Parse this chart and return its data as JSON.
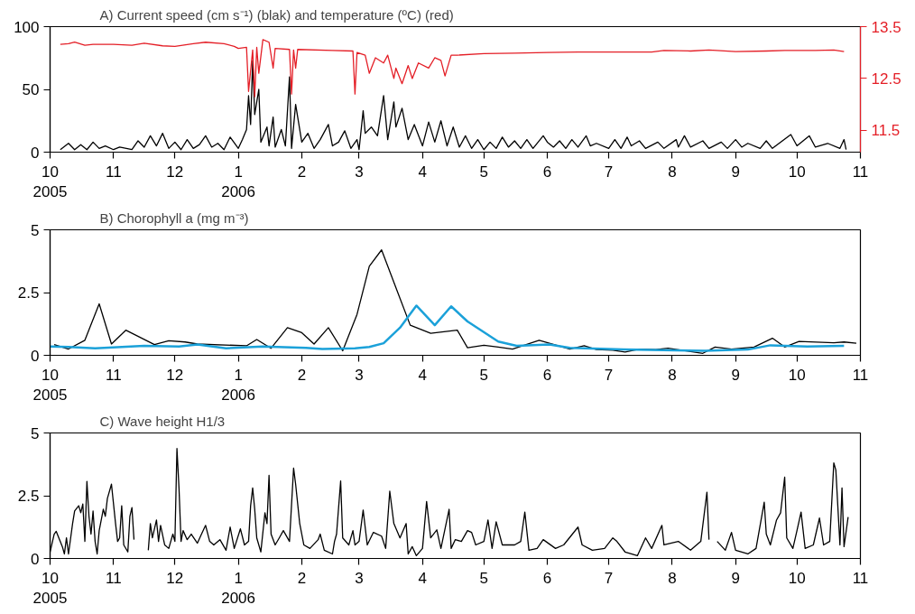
{
  "chart_data": [
    {
      "type": "line",
      "title": "A) Current speed (cm s⁻¹) (blak) and temperature (ºC) (red)",
      "xlim": [
        "2005-10-01",
        "2006-11-01"
      ],
      "xticks": [
        {
          "value": "2005-10-01",
          "label": "10\n2005"
        },
        {
          "value": "2005-11-01",
          "label": "11"
        },
        {
          "value": "2005-12-01",
          "label": "12"
        },
        {
          "value": "2006-01-01",
          "label": "1\n2006"
        },
        {
          "value": "2006-02-01",
          "label": "2"
        },
        {
          "value": "2006-03-01",
          "label": "3"
        },
        {
          "value": "2006-04-01",
          "label": "4"
        },
        {
          "value": "2006-05-01",
          "label": "5"
        },
        {
          "value": "2006-06-01",
          "label": "6"
        },
        {
          "value": "2006-07-01",
          "label": "7"
        },
        {
          "value": "2006-08-01",
          "label": "8"
        },
        {
          "value": "2006-09-01",
          "label": "9"
        },
        {
          "value": "2006-10-01",
          "label": "10"
        },
        {
          "value": "2006-11-01",
          "label": "11"
        }
      ],
      "ylim": [
        0,
        100
      ],
      "yticks": [
        0,
        50,
        100
      ],
      "y2lim": [
        11.08,
        13.5
      ],
      "y2ticks": [
        11.5,
        12.5,
        13.5
      ],
      "grid": false,
      "series": [
        {
          "color": "#000000",
          "x": [
            "2005-10-06",
            "2005-10-10",
            "2005-10-13",
            "2005-10-16",
            "2005-10-19",
            "2005-10-22",
            "2005-10-25",
            "2005-10-28",
            "2005-11-01",
            "2005-11-04",
            "2005-11-10",
            "2005-11-13",
            "2005-11-16",
            "2005-11-19",
            "2005-11-22",
            "2005-11-25",
            "2005-11-28",
            "2005-12-01",
            "2005-12-04",
            "2005-12-07",
            "2005-12-10",
            "2005-12-13",
            "2005-12-16",
            "2005-12-19",
            "2005-12-22",
            "2005-12-25",
            "2005-12-28",
            "2006-01-01",
            "2006-01-03",
            "2006-01-05",
            "2006-01-06",
            "2006-01-07",
            "2006-01-08",
            "2006-01-09",
            "2006-01-11",
            "2006-01-12",
            "2006-01-15",
            "2006-01-16",
            "2006-01-18",
            "2006-01-19",
            "2006-01-22",
            "2006-01-24",
            "2006-01-26",
            "2006-01-27",
            "2006-01-29",
            "2006-02-01",
            "2006-02-04",
            "2006-02-07",
            "2006-02-10",
            "2006-02-14",
            "2006-02-16",
            "2006-02-19",
            "2006-02-22",
            "2006-02-25",
            "2006-02-28",
            "2006-03-01",
            "2006-03-03",
            "2006-03-04",
            "2006-03-07",
            "2006-03-10",
            "2006-03-13",
            "2006-03-15",
            "2006-03-18",
            "2006-03-19",
            "2006-03-22",
            "2006-03-25",
            "2006-03-28",
            "2006-04-01",
            "2006-04-04",
            "2006-04-07",
            "2006-04-10",
            "2006-04-13",
            "2006-04-16",
            "2006-04-19",
            "2006-04-22",
            "2006-04-25",
            "2006-04-28",
            "2006-05-01",
            "2006-05-04",
            "2006-05-07",
            "2006-05-10",
            "2006-05-13",
            "2006-05-16",
            "2006-05-19",
            "2006-05-22",
            "2006-05-25",
            "2006-05-30",
            "2006-06-01",
            "2006-06-04",
            "2006-06-07",
            "2006-06-10",
            "2006-06-13",
            "2006-06-16",
            "2006-06-20",
            "2006-06-22",
            "2006-06-25",
            "2006-07-01",
            "2006-07-04",
            "2006-07-07",
            "2006-07-10",
            "2006-07-12",
            "2006-07-16",
            "2006-07-19",
            "2006-07-25",
            "2006-07-28",
            "2006-08-03",
            "2006-08-04",
            "2006-08-07",
            "2006-08-10",
            "2006-08-16",
            "2006-08-19",
            "2006-08-25",
            "2006-08-28",
            "2006-09-01",
            "2006-09-04",
            "2006-09-07",
            "2006-09-13",
            "2006-09-16",
            "2006-09-19",
            "2006-09-28",
            "2006-10-01",
            "2006-10-07",
            "2006-10-10",
            "2006-10-16",
            "2006-10-22",
            "2006-10-24",
            "2006-10-25"
          ],
          "values": [
            2,
            7,
            2,
            6,
            2,
            8,
            3,
            5,
            2,
            4,
            2,
            9,
            4,
            13,
            5,
            15,
            3,
            8,
            2,
            10,
            3,
            6,
            13,
            4,
            7,
            2,
            12,
            3,
            10,
            18,
            45,
            22,
            73,
            30,
            50,
            8,
            20,
            5,
            28,
            4,
            18,
            5,
            60,
            3,
            38,
            8,
            15,
            3,
            10,
            22,
            5,
            8,
            17,
            3,
            10,
            2,
            33,
            15,
            20,
            13,
            45,
            10,
            40,
            20,
            35,
            10,
            22,
            5,
            24,
            8,
            25,
            5,
            20,
            4,
            13,
            3,
            10,
            2,
            8,
            3,
            12,
            4,
            9,
            3,
            10,
            3,
            13,
            8,
            4,
            9,
            3,
            10,
            4,
            13,
            5,
            7,
            3,
            10,
            3,
            12,
            5,
            9,
            3,
            8,
            3,
            10,
            4,
            13,
            4,
            9,
            3,
            8,
            3,
            10,
            4,
            7,
            3,
            9,
            3,
            14,
            5,
            13,
            4,
            7,
            3,
            10,
            2
          ]
        },
        {
          "color": "#e41e26",
          "axis": "y2",
          "x": [
            "2005-10-06",
            "2005-10-10",
            "2005-10-13",
            "2005-10-18",
            "2005-10-22",
            "2005-11-01",
            "2005-11-10",
            "2005-11-16",
            "2005-11-25",
            "2005-12-01",
            "2005-12-10",
            "2005-12-16",
            "2005-12-25",
            "2005-12-30",
            "2006-01-01",
            "2006-01-05",
            "2006-01-06",
            "2006-01-08",
            "2006-01-09",
            "2006-01-10",
            "2006-01-11",
            "2006-01-13",
            "2006-01-16",
            "2006-01-18",
            "2006-01-19",
            "2006-01-26",
            "2006-01-27",
            "2006-01-28",
            "2006-01-29",
            "2006-01-30",
            "2006-02-16",
            "2006-02-26",
            "2006-02-27",
            "2006-02-28",
            "2006-03-04",
            "2006-03-06",
            "2006-03-09",
            "2006-03-13",
            "2006-03-15",
            "2006-03-18",
            "2006-03-19",
            "2006-03-22",
            "2006-03-25",
            "2006-03-27",
            "2006-03-30",
            "2006-04-04",
            "2006-04-07",
            "2006-04-10",
            "2006-04-12",
            "2006-04-15",
            "2006-04-18",
            "2006-05-01",
            "2006-05-16",
            "2006-06-01",
            "2006-06-16",
            "2006-07-01",
            "2006-07-22",
            "2006-07-28",
            "2006-08-10",
            "2006-08-19",
            "2006-09-01",
            "2006-09-16",
            "2006-09-25",
            "2006-10-10",
            "2006-10-19",
            "2006-10-24"
          ],
          "values": [
            13.16,
            13.17,
            13.2,
            13.14,
            13.16,
            13.16,
            13.14,
            13.18,
            13.13,
            13.12,
            13.17,
            13.2,
            13.17,
            13.12,
            13.08,
            13.1,
            12.25,
            13.05,
            12.15,
            13.1,
            12.6,
            13.25,
            13.2,
            12.7,
            13.08,
            13.06,
            12.2,
            13.05,
            12.7,
            13.06,
            13.04,
            13.03,
            12.2,
            13.0,
            12.95,
            12.6,
            12.9,
            12.8,
            12.95,
            12.5,
            12.7,
            12.4,
            12.75,
            12.5,
            12.8,
            12.7,
            12.9,
            12.85,
            12.55,
            12.95,
            12.95,
            12.98,
            12.99,
            13.0,
            13.01,
            13.01,
            13.01,
            13.04,
            13.03,
            13.05,
            13.02,
            13.03,
            13.04,
            13.04,
            13.05,
            13.02
          ]
        }
      ]
    },
    {
      "type": "line",
      "title": "B) Chorophyll a (mg m⁻³)",
      "xlim": [
        "2005-10-01",
        "2006-11-01"
      ],
      "xticks": [
        {
          "value": "2005-10-01",
          "label": "10\n2005"
        },
        {
          "value": "2005-11-01",
          "label": "11"
        },
        {
          "value": "2005-12-01",
          "label": "12"
        },
        {
          "value": "2006-01-01",
          "label": "1\n2006"
        },
        {
          "value": "2006-02-01",
          "label": "2"
        },
        {
          "value": "2006-03-01",
          "label": "3"
        },
        {
          "value": "2006-04-01",
          "label": "4"
        },
        {
          "value": "2006-05-01",
          "label": "5"
        },
        {
          "value": "2006-06-01",
          "label": "6"
        },
        {
          "value": "2006-07-01",
          "label": "7"
        },
        {
          "value": "2006-08-01",
          "label": "8"
        },
        {
          "value": "2006-09-01",
          "label": "9"
        },
        {
          "value": "2006-10-01",
          "label": "10"
        },
        {
          "value": "2006-11-01",
          "label": "11"
        }
      ],
      "ylim": [
        0,
        5
      ],
      "yticks": [
        0,
        2.5,
        5
      ],
      "grid": false,
      "series": [
        {
          "color": "#000000",
          "x": [
            "2005-10-03",
            "2005-10-10",
            "2005-10-18",
            "2005-10-25",
            "2005-10-31",
            "2005-11-07",
            "2005-11-21",
            "2005-11-28",
            "2005-12-06",
            "2005-12-12",
            "2006-01-05",
            "2006-01-10",
            "2006-01-17",
            "2006-01-25",
            "2006-02-01",
            "2006-02-07",
            "2006-02-14",
            "2006-02-21",
            "2006-02-28",
            "2006-03-06",
            "2006-03-12",
            "2006-03-20",
            "2006-03-26",
            "2006-04-05",
            "2006-04-18",
            "2006-04-23",
            "2006-05-01",
            "2006-05-08",
            "2006-05-15",
            "2006-05-28",
            "2006-06-12",
            "2006-06-19",
            "2006-06-25",
            "2006-07-03",
            "2006-07-09",
            "2006-07-16",
            "2006-07-24",
            "2006-07-30",
            "2006-08-16",
            "2006-08-22",
            "2006-08-30",
            "2006-09-10",
            "2006-09-19",
            "2006-09-25",
            "2006-10-02",
            "2006-10-19",
            "2006-10-24",
            "2006-10-30"
          ],
          "values": [
            0.43,
            0.25,
            0.6,
            2.05,
            0.45,
            1.0,
            0.43,
            0.58,
            0.53,
            0.45,
            0.38,
            0.63,
            0.28,
            1.1,
            0.9,
            0.45,
            1.1,
            0.18,
            1.63,
            3.55,
            4.2,
            2.48,
            1.2,
            0.88,
            1.0,
            0.3,
            0.4,
            0.33,
            0.25,
            0.6,
            0.25,
            0.38,
            0.23,
            0.2,
            0.13,
            0.25,
            0.23,
            0.28,
            0.08,
            0.33,
            0.25,
            0.33,
            0.68,
            0.33,
            0.55,
            0.5,
            0.53,
            0.48
          ]
        },
        {
          "color": "#1ba1d9",
          "x": [
            "2005-10-01",
            "2005-10-10",
            "2005-10-23",
            "2005-11-16",
            "2005-12-03",
            "2005-12-12",
            "2005-12-26",
            "2006-01-13",
            "2006-02-03",
            "2006-02-11",
            "2006-02-27",
            "2006-03-06",
            "2006-03-13",
            "2006-03-21",
            "2006-03-29",
            "2006-04-07",
            "2006-04-15",
            "2006-04-23",
            "2006-05-08",
            "2006-05-17",
            "2006-06-02",
            "2006-06-12",
            "2006-07-08",
            "2006-08-17",
            "2006-09-07",
            "2006-09-18",
            "2006-10-06",
            "2006-10-24"
          ],
          "values": [
            0.35,
            0.33,
            0.28,
            0.38,
            0.35,
            0.43,
            0.28,
            0.35,
            0.3,
            0.25,
            0.28,
            0.33,
            0.48,
            1.1,
            1.98,
            1.2,
            1.95,
            1.35,
            0.55,
            0.38,
            0.43,
            0.3,
            0.23,
            0.18,
            0.23,
            0.4,
            0.35,
            0.38
          ]
        }
      ]
    },
    {
      "type": "line",
      "title": "C) Wave height H1/3",
      "xlim": [
        "2005-10-01",
        "2006-11-01"
      ],
      "xticks": [
        {
          "value": "2005-10-01",
          "label": "10\n2005"
        },
        {
          "value": "2005-11-01",
          "label": "11"
        },
        {
          "value": "2005-12-01",
          "label": "12"
        },
        {
          "value": "2006-01-01",
          "label": "1\n2006"
        },
        {
          "value": "2006-02-01",
          "label": "2"
        },
        {
          "value": "2006-03-01",
          "label": "3"
        },
        {
          "value": "2006-04-01",
          "label": "4"
        },
        {
          "value": "2006-05-01",
          "label": "5"
        },
        {
          "value": "2006-06-01",
          "label": "6"
        },
        {
          "value": "2006-07-01",
          "label": "7"
        },
        {
          "value": "2006-08-01",
          "label": "8"
        },
        {
          "value": "2006-09-01",
          "label": "9"
        },
        {
          "value": "2006-10-01",
          "label": "10"
        },
        {
          "value": "2006-11-01",
          "label": "11"
        }
      ],
      "ylim": [
        0,
        5
      ],
      "yticks": [
        0,
        2.5,
        5
      ],
      "grid": false,
      "series": [
        {
          "color": "#000000",
          "x": [
            "2005-10-01",
            "2005-10-03",
            "2005-10-04",
            "2005-10-07",
            "2005-10-08",
            "2005-10-09",
            "2005-10-10",
            "2005-10-12",
            "2005-10-13",
            "2005-10-15",
            "2005-10-16",
            "2005-10-17",
            "2005-10-18",
            "2005-10-19",
            "2005-10-20",
            "2005-10-21",
            "2005-10-22",
            "2005-10-23",
            "2005-10-24",
            "2005-10-25",
            "2005-10-27",
            "2005-10-28",
            "2005-10-29",
            "2005-10-31",
            "2005-11-02",
            "2005-11-03",
            "2005-11-04",
            "2005-11-05",
            "2005-11-06",
            "2005-11-08",
            "2005-11-09",
            "2005-11-10",
            "2005-11-11",
            "2005-11-14",
            "2005-11-18",
            "2005-11-19",
            "2005-11-20",
            "2005-11-22",
            "2005-11-23",
            "2005-11-24",
            "2005-11-26",
            "2005-11-28",
            "2005-11-30",
            "2005-12-01",
            "2005-12-02",
            "2005-12-03",
            "2005-12-04",
            "2005-12-05",
            "2005-12-07",
            "2005-12-09",
            "2005-12-12",
            "2005-12-14",
            "2005-12-16",
            "2005-12-18",
            "2005-12-20",
            "2005-12-23",
            "2005-12-26",
            "2005-12-28",
            "2005-12-30",
            "2006-01-02",
            "2006-01-04",
            "2006-01-06",
            "2006-01-07",
            "2006-01-08",
            "2006-01-09",
            "2006-01-10",
            "2006-01-12",
            "2006-01-14",
            "2006-01-15",
            "2006-01-16",
            "2006-01-17",
            "2006-01-19",
            "2006-01-21",
            "2006-01-23",
            "2006-01-26",
            "2006-01-28",
            "2006-01-29",
            "2006-01-31",
            "2006-02-02",
            "2006-02-05",
            "2006-02-09",
            "2006-02-10",
            "2006-02-12",
            "2006-02-16",
            "2006-02-17",
            "2006-02-18",
            "2006-02-20",
            "2006-02-21",
            "2006-02-24",
            "2006-02-26",
            "2006-02-27",
            "2006-03-01",
            "2006-03-03",
            "2006-03-05",
            "2006-03-08",
            "2006-03-12",
            "2006-03-14",
            "2006-03-16",
            "2006-03-18",
            "2006-03-21",
            "2006-03-24",
            "2006-03-25",
            "2006-03-27",
            "2006-03-29",
            "2006-04-01",
            "2006-04-03",
            "2006-04-05",
            "2006-04-08",
            "2006-04-10",
            "2006-04-14",
            "2006-04-15",
            "2006-04-17",
            "2006-04-20",
            "2006-04-23",
            "2006-04-25",
            "2006-04-27",
            "2006-05-01",
            "2006-05-03",
            "2006-05-05",
            "2006-05-07",
            "2006-05-10",
            "2006-05-16",
            "2006-05-19",
            "2006-05-21",
            "2006-05-23",
            "2006-05-27",
            "2006-05-30",
            "2006-06-05",
            "2006-06-09",
            "2006-06-16",
            "2006-06-18",
            "2006-06-23",
            "2006-06-29",
            "2006-07-03",
            "2006-07-05",
            "2006-07-09",
            "2006-07-15",
            "2006-07-19",
            "2006-07-22",
            "2006-07-27",
            "2006-07-28",
            "2006-08-04",
            "2006-08-10",
            "2006-08-15",
            "2006-08-18",
            "2006-08-19",
            "2006-08-21",
            "2006-08-23",
            "2006-08-27",
            "2006-08-30",
            "2006-09-01",
            "2006-09-07",
            "2006-09-11",
            "2006-09-15",
            "2006-09-16",
            "2006-09-18",
            "2006-09-21",
            "2006-09-23",
            "2006-09-25",
            "2006-09-26",
            "2006-09-29",
            "2006-10-01",
            "2006-10-03",
            "2006-10-05",
            "2006-10-09",
            "2006-10-12",
            "2006-10-14",
            "2006-10-17",
            "2006-10-19",
            "2006-10-20",
            "2006-10-22",
            "2006-10-23",
            "2006-10-24",
            "2006-10-26"
          ],
          "values": [
            0.26,
            0.97,
            1.08,
            0.47,
            0.18,
            0.82,
            0.18,
            1.39,
            1.89,
            2.1,
            1.82,
            2.17,
            0.68,
            3.07,
            1.68,
            0.97,
            1.89,
            0.68,
            0.18,
            1.11,
            1.96,
            1.68,
            2.39,
            2.96,
            1.39,
            0.68,
            0.82,
            2.1,
            0.54,
            0.26,
            1.68,
            2.03,
            0.75,
            null,
            0.33,
            1.39,
            0.82,
            1.53,
            0.68,
            1.32,
            0.54,
            0.4,
            0.97,
            0.68,
            4.38,
            2.81,
            0.68,
            1.11,
            0.75,
            0.97,
            0.61,
            0.97,
            1.32,
            0.68,
            0.54,
            0.75,
            0.33,
            1.25,
            0.4,
            1.18,
            0.54,
            0.68,
            2.1,
            2.81,
            1.96,
            0.82,
            0.26,
            1.82,
            1.39,
            3.31,
            0.97,
            0.54,
            0.82,
            1.11,
            0.68,
            3.6,
            2.96,
            1.39,
            0.54,
            0.4,
            0.75,
            0.97,
            0.33,
            0.18,
            0.68,
            0.97,
            3.09,
            0.82,
            0.54,
            1.11,
            0.54,
            0.68,
            1.93,
            0.54,
            1.04,
            0.89,
            0.4,
            2.68,
            1.39,
            0.82,
            1.39,
            0.18,
            0.47,
            0.11,
            0.4,
            2.27,
            0.82,
            1.14,
            0.4,
            1.96,
            0.4,
            0.75,
            0.68,
            1.11,
            1.04,
            0.54,
            0.68,
            1.53,
            0.4,
            1.46,
            0.54,
            0.54,
            0.68,
            1.85,
            0.33,
            0.4,
            0.75,
            0.4,
            0.54,
            1.25,
            0.54,
            0.33,
            0.4,
            0.82,
            0.68,
            0.26,
            0.11,
            0.82,
            0.4,
            1.32,
            0.54,
            0.68,
            0.33,
            0.68,
            2.64,
            0.75,
            null,
            0.68,
            0.33,
            1.04,
            0.33,
            0.18,
            0.4,
            2.24,
            0.97,
            0.54,
            1.53,
            1.82,
            3.24,
            0.82,
            0.4,
            1.11,
            1.85,
            0.4,
            0.54,
            1.61,
            0.54,
            0.68,
            3.81,
            3.52,
            0.54,
            2.81,
            0.47,
            1.65
          ]
        }
      ]
    }
  ]
}
